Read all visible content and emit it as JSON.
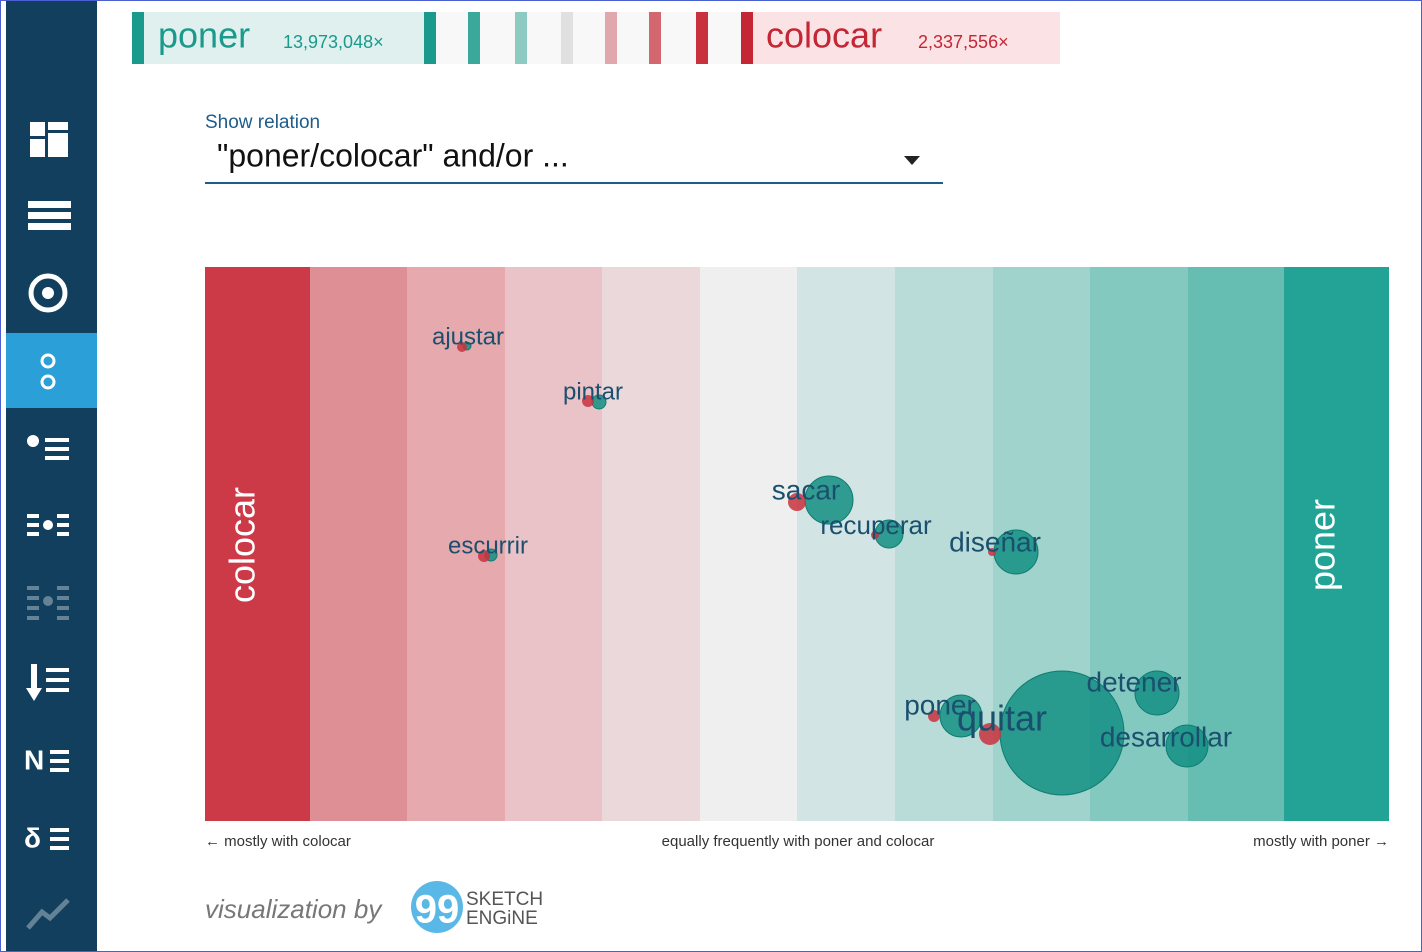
{
  "header": {
    "word1": {
      "lemma": "poner",
      "frequency": "13,973,048×"
    },
    "word2": {
      "lemma": "colocar",
      "frequency": "2,337,556×"
    }
  },
  "relation": {
    "label": "Show relation",
    "selected": "\"poner/colocar\" and/or ..."
  },
  "visualization": {
    "left_band_label": "colocar",
    "right_band_label": "poner",
    "words": [
      "ajustar",
      "pintar",
      "sacar",
      "recuperar",
      "diseñar",
      "escurrir",
      "poner",
      "quitar",
      "detener",
      "desarrollar"
    ],
    "axis": {
      "left": "← mostly with colocar",
      "center": "equally frequently with poner and colocar",
      "right": "mostly with poner →"
    }
  },
  "footer": {
    "text": "visualization by",
    "logo_line1": "SKETCH",
    "logo_line2": "ENGiNE"
  }
}
